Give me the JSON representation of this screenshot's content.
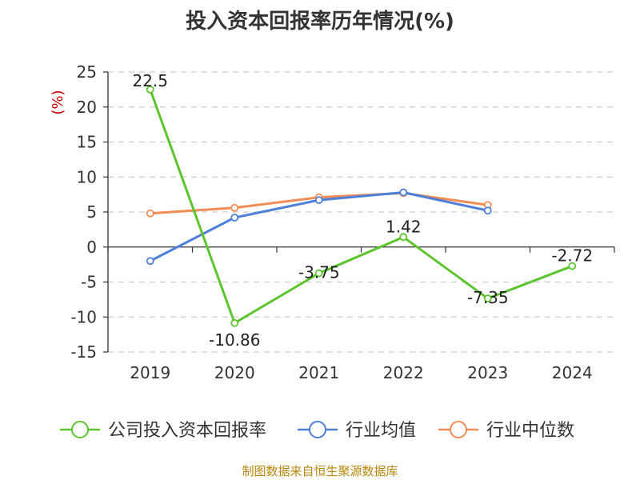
{
  "chart_data": {
    "type": "line",
    "title": "投入资本回报率历年情况(%)",
    "ylabel": "(%)",
    "categories": [
      "2019",
      "2020",
      "2021",
      "2022",
      "2023",
      "2024"
    ],
    "ylim": [
      -15,
      25
    ],
    "yticks": [
      25,
      20,
      15,
      10,
      5,
      0,
      -5,
      -10,
      -15
    ],
    "grid": true,
    "legend_position": "bottom",
    "series": [
      {
        "name": "公司投入资本回报率",
        "color": "#5cc52e",
        "values": [
          22.5,
          -10.86,
          -3.75,
          1.42,
          -7.35,
          -2.72
        ],
        "labels": [
          "22.5",
          "-10.86",
          "-3.75",
          "1.42",
          "-7.35",
          "-2.72"
        ]
      },
      {
        "name": "行业均值",
        "color": "#4e7fd9",
        "values": [
          -2.0,
          4.2,
          6.7,
          7.8,
          5.2,
          null
        ]
      },
      {
        "name": "行业中位数",
        "color": "#f28c55",
        "values": [
          4.8,
          5.6,
          7.1,
          7.7,
          6.0,
          null
        ]
      }
    ]
  },
  "footer": {
    "source": "制图数据来自恒生聚源数据库"
  }
}
